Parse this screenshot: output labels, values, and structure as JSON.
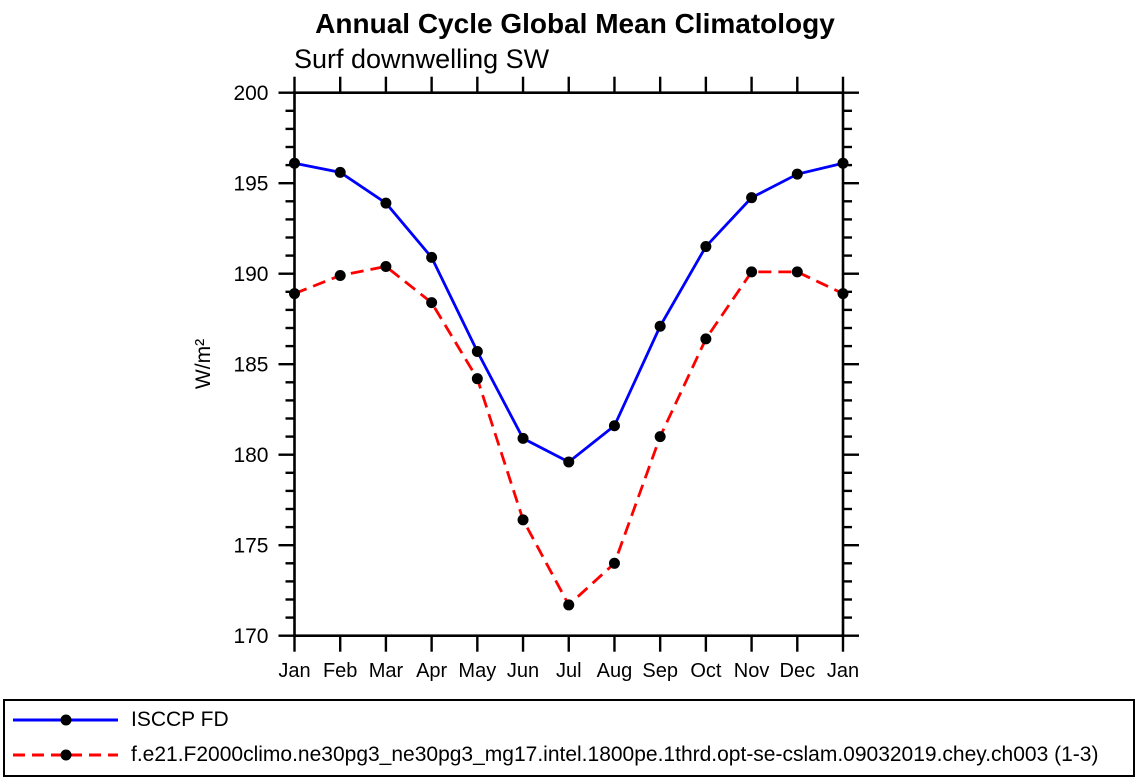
{
  "chart_data": {
    "type": "line",
    "title": "Annual Cycle Global Mean Climatology",
    "subtitle": "Surf downwelling SW",
    "ylabel": "W/m²",
    "xlabel": "",
    "categories": [
      "Jan",
      "Feb",
      "Mar",
      "Apr",
      "May",
      "Jun",
      "Jul",
      "Aug",
      "Sep",
      "Oct",
      "Nov",
      "Dec",
      "Jan"
    ],
    "series": [
      {
        "name": "ISCCP FD",
        "color": "#0000ff",
        "line_style": "solid",
        "marker": "black-filled-circle",
        "values": [
          196.1,
          195.6,
          193.9,
          190.9,
          185.7,
          180.9,
          179.6,
          181.6,
          187.1,
          191.5,
          194.2,
          195.5,
          196.1
        ]
      },
      {
        "name": "f.e21.F2000climo.ne30pg3_ne30pg3_mg17.intel.1800pe.1thrd.opt-se-cslam.09032019.chey.ch003 (1-3)",
        "color": "#ff0000",
        "line_style": "dashed",
        "marker": "black-filled-circle",
        "values": [
          188.9,
          189.9,
          190.4,
          188.4,
          184.2,
          176.4,
          171.7,
          174.0,
          181.0,
          186.4,
          190.1,
          190.1,
          188.9
        ]
      }
    ],
    "ylim": [
      170,
      200
    ],
    "yticks": [
      170,
      175,
      180,
      185,
      190,
      195,
      200
    ],
    "minor_tick_step": 1,
    "grid": "off",
    "legend_position": "bottom-box",
    "axis_color": "#000000",
    "marker_color": "#000000"
  }
}
